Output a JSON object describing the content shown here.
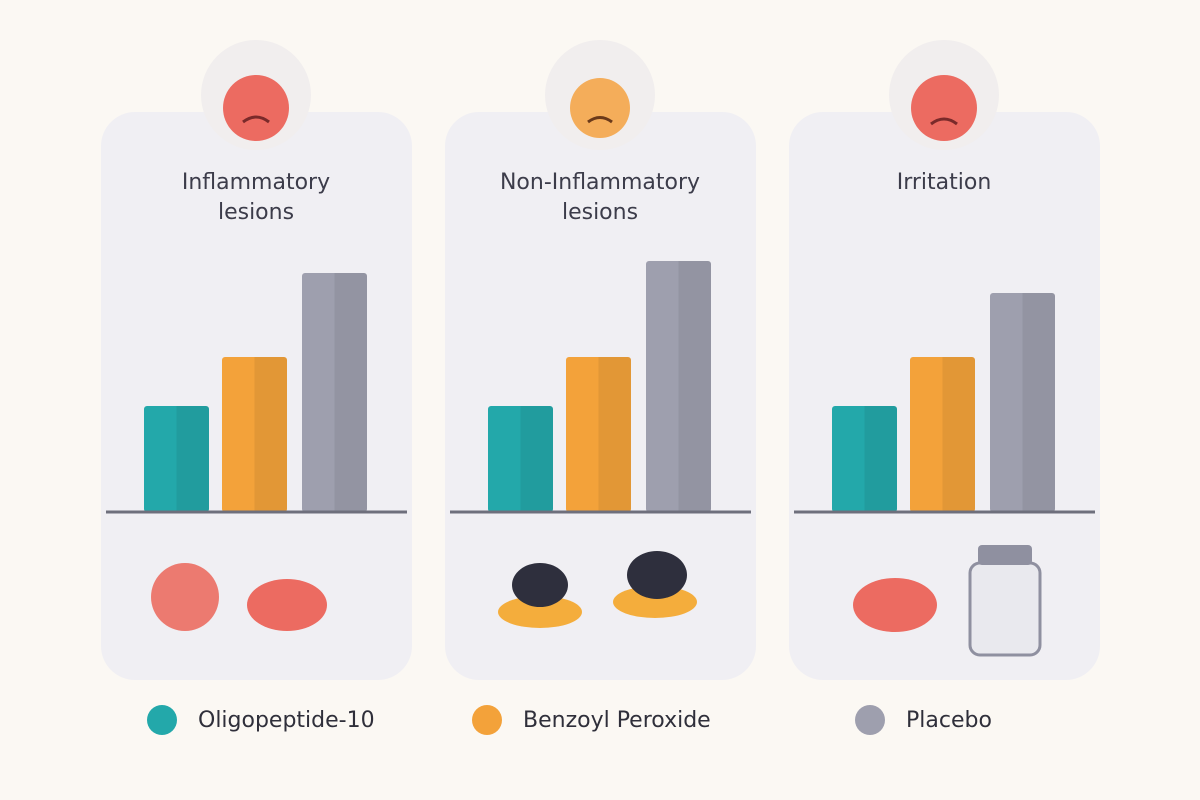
{
  "chart_data": {
    "type": "bar",
    "categories": [
      "Inflammatory lesions",
      "Non-Inflammatory lesions",
      "Irritation"
    ],
    "series": [
      {
        "name": "Oligopeptide-10",
        "color": "#23a8aa",
        "values": [
          106,
          106,
          106
        ]
      },
      {
        "name": "Benzoyl Peroxide",
        "color": "#f3a23a",
        "values": [
          155,
          155,
          155
        ]
      },
      {
        "name": "Placebo",
        "color": "#9e9fae",
        "values": [
          239,
          251,
          219
        ]
      }
    ]
  }
}
